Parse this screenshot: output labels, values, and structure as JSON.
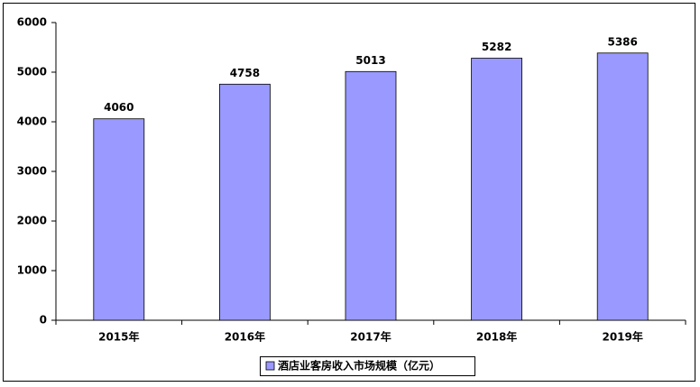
{
  "chart_data": {
    "type": "bar",
    "categories": [
      "2015年",
      "2016年",
      "2017年",
      "2018年",
      "2019年"
    ],
    "series": [
      {
        "name": "酒店业客房收入市场规模（亿元）",
        "color": "#9999ff",
        "values": [
          4060,
          4758,
          5013,
          5282,
          5386
        ]
      }
    ],
    "ylim": [
      0,
      6000
    ],
    "yticks": [
      0,
      1000,
      2000,
      3000,
      4000,
      5000,
      6000
    ],
    "legend": "bottom",
    "grid": false
  }
}
